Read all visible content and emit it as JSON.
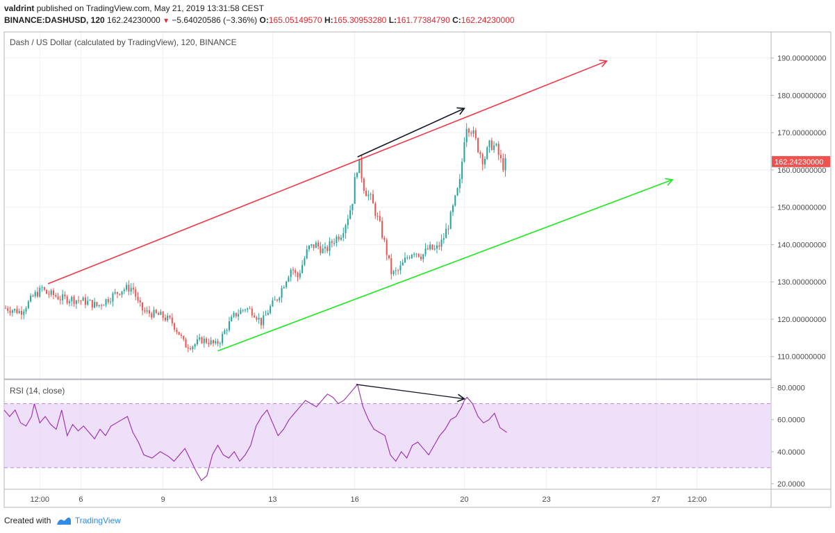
{
  "header": {
    "publisher": "valdrint",
    "published_text": "published on TradingView.com, May 21, 2019 13:31:58 CEST",
    "symbol": "BINANCE:DASHUSD, 120",
    "last": "162.24230000",
    "change": "−5.64020586 (−3.36%)",
    "open_label": "O:",
    "open": "165.05149570",
    "high_label": "H:",
    "high": "165.30953280",
    "low_label": "L:",
    "low": "161.77384790",
    "close_label": "C:",
    "close": "162.24230000"
  },
  "chart_data": [
    {
      "type": "candlestick",
      "title": "Dash / US Dollar (calculated by TradingView), 120, BINANCE",
      "ylim": [
        104,
        197
      ],
      "y_ticks": [
        110,
        120,
        130,
        140,
        150,
        160,
        170,
        180,
        190
      ],
      "y_tick_labels": [
        "110.00000000",
        "120.00000000",
        "130.00000000",
        "140.00000000",
        "150.00000000",
        "160.00000000",
        "170.00000000",
        "180.00000000",
        "190.00000000"
      ],
      "x_tick_labels": [
        "12:00",
        "6",
        "9",
        "13",
        "16",
        "20",
        "23",
        "27",
        "12:00"
      ],
      "x_ticks_day": [
        4.5,
        6,
        9,
        13,
        16,
        20,
        23,
        27,
        28.5
      ],
      "xlim": [
        3.2,
        31.2
      ],
      "last_price_label": "162.24230000",
      "up_color": "#26a69a",
      "down_color": "#ef5350",
      "close_path": [
        [
          3.25,
          123
        ],
        [
          3.8,
          122
        ],
        [
          4.1,
          124.5
        ],
        [
          4.3,
          126.5
        ],
        [
          4.5,
          127.5
        ],
        [
          4.6,
          128.5
        ],
        [
          4.7,
          127
        ],
        [
          5.0,
          126.5
        ],
        [
          5.3,
          125.5
        ],
        [
          5.6,
          125.5
        ],
        [
          6.0,
          125
        ],
        [
          6.3,
          124.5
        ],
        [
          6.6,
          123.5
        ],
        [
          6.9,
          125
        ],
        [
          7.2,
          126.5
        ],
        [
          7.5,
          128
        ],
        [
          7.9,
          128.5
        ],
        [
          8.1,
          124
        ],
        [
          8.3,
          122
        ],
        [
          8.6,
          121.5
        ],
        [
          8.9,
          121
        ],
        [
          9.3,
          119.5
        ],
        [
          9.6,
          116
        ],
        [
          9.8,
          113
        ],
        [
          10.1,
          113
        ],
        [
          10.4,
          114.5
        ],
        [
          10.7,
          114
        ],
        [
          10.9,
          113
        ],
        [
          11.1,
          114.5
        ],
        [
          11.3,
          117.5
        ],
        [
          11.6,
          121
        ],
        [
          12.0,
          123
        ],
        [
          12.3,
          122
        ],
        [
          12.6,
          119
        ],
        [
          12.9,
          123
        ],
        [
          13.2,
          126
        ],
        [
          13.5,
          131
        ],
        [
          13.7,
          134
        ],
        [
          13.9,
          131
        ],
        [
          14.1,
          135
        ],
        [
          14.3,
          139
        ],
        [
          14.6,
          140
        ],
        [
          14.9,
          138
        ],
        [
          15.2,
          141
        ],
        [
          15.5,
          143
        ],
        [
          15.7,
          146.5
        ],
        [
          15.9,
          151
        ],
        [
          16.05,
          160
        ],
        [
          16.15,
          162
        ],
        [
          16.35,
          155
        ],
        [
          16.6,
          152
        ],
        [
          16.9,
          145.5
        ],
        [
          17.1,
          140
        ],
        [
          17.35,
          132
        ],
        [
          17.6,
          133
        ],
        [
          17.9,
          136.5
        ],
        [
          18.15,
          138.5
        ],
        [
          18.45,
          137
        ],
        [
          18.7,
          139
        ],
        [
          18.95,
          138.5
        ],
        [
          19.2,
          141
        ],
        [
          19.45,
          146
        ],
        [
          19.65,
          151.5
        ],
        [
          19.85,
          157
        ],
        [
          19.95,
          165
        ],
        [
          20.05,
          172.5
        ],
        [
          20.25,
          171
        ],
        [
          20.5,
          166
        ],
        [
          20.7,
          162.5
        ],
        [
          20.95,
          167
        ],
        [
          21.15,
          166
        ],
        [
          21.4,
          161
        ],
        [
          21.55,
          162.24
        ]
      ],
      "drawings": [
        {
          "color": "#f23645",
          "from": [
            4.8,
            129.5
          ],
          "to": [
            25.2,
            189.2
          ],
          "arrow": true
        },
        {
          "color": "#1ee81e",
          "from": [
            11.0,
            111.5
          ],
          "to": [
            27.6,
            157.4
          ],
          "arrow": true
        },
        {
          "color": "#131722",
          "from": [
            16.1,
            163.5
          ],
          "to": [
            20.0,
            176.5
          ],
          "arrow": true
        }
      ]
    },
    {
      "type": "line",
      "title": "RSI (14, close)",
      "ylim": [
        16.5,
        85
      ],
      "y_ticks": [
        20,
        40,
        60,
        80
      ],
      "y_tick_labels": [
        "20.0000",
        "40.0000",
        "60.0000",
        "80.0000"
      ],
      "band": [
        30,
        70
      ],
      "band_color": "#e8d5f7",
      "line_color": "#9b27b0",
      "series": [
        {
          "x": [
            3.2,
            3.4,
            3.6,
            3.8,
            4.0,
            4.2,
            4.3,
            4.5,
            4.7,
            4.9,
            5.1,
            5.3,
            5.5,
            5.7,
            5.9,
            6.1,
            6.3,
            6.5,
            6.7,
            6.9,
            7.1,
            7.3,
            7.5,
            7.7,
            7.9,
            8.1,
            8.3,
            8.6,
            8.9,
            9.2,
            9.4,
            9.6,
            9.8,
            10.0,
            10.2,
            10.4,
            10.6,
            10.8,
            11.0,
            11.2,
            11.4,
            11.6,
            11.8,
            12.0,
            12.2,
            12.4,
            12.6,
            12.8,
            13.0,
            13.2,
            13.4,
            13.6,
            13.8,
            14.0,
            14.2,
            14.4,
            14.6,
            14.8,
            15.0,
            15.2,
            15.4,
            15.6,
            15.8,
            16.0,
            16.1,
            16.3,
            16.5,
            16.7,
            16.9,
            17.1,
            17.3,
            17.5,
            17.7,
            17.9,
            18.1,
            18.3,
            18.5,
            18.7,
            18.9,
            19.1,
            19.3,
            19.5,
            19.7,
            19.9,
            20.0,
            20.1,
            20.3,
            20.5,
            20.7,
            20.9,
            21.1,
            21.3,
            21.55
          ],
          "values": [
            66,
            62,
            66,
            58,
            56,
            62,
            70,
            58,
            62,
            57,
            54,
            66,
            50,
            57,
            53,
            56,
            52,
            48,
            54,
            50,
            56,
            58,
            60,
            62,
            52,
            46,
            38,
            36,
            40,
            37,
            34,
            38,
            42,
            35,
            28,
            22,
            25,
            38,
            44,
            38,
            36,
            40,
            34,
            38,
            44,
            56,
            62,
            66,
            58,
            50,
            54,
            60,
            64,
            68,
            72,
            70,
            68,
            72,
            76,
            74,
            70,
            72,
            76,
            80,
            82,
            68,
            60,
            54,
            52,
            50,
            38,
            34,
            40,
            36,
            44,
            46,
            42,
            38,
            44,
            50,
            54,
            60,
            62,
            68,
            72,
            74,
            70,
            62,
            58,
            60,
            64,
            55,
            52
          ]
        }
      ],
      "drawings": [
        {
          "color": "#131722",
          "from": [
            16.05,
            82
          ],
          "to": [
            20.0,
            73
          ],
          "arrow": true
        }
      ]
    }
  ],
  "footer": {
    "created_with": "Created with",
    "brand": "TradingView"
  }
}
